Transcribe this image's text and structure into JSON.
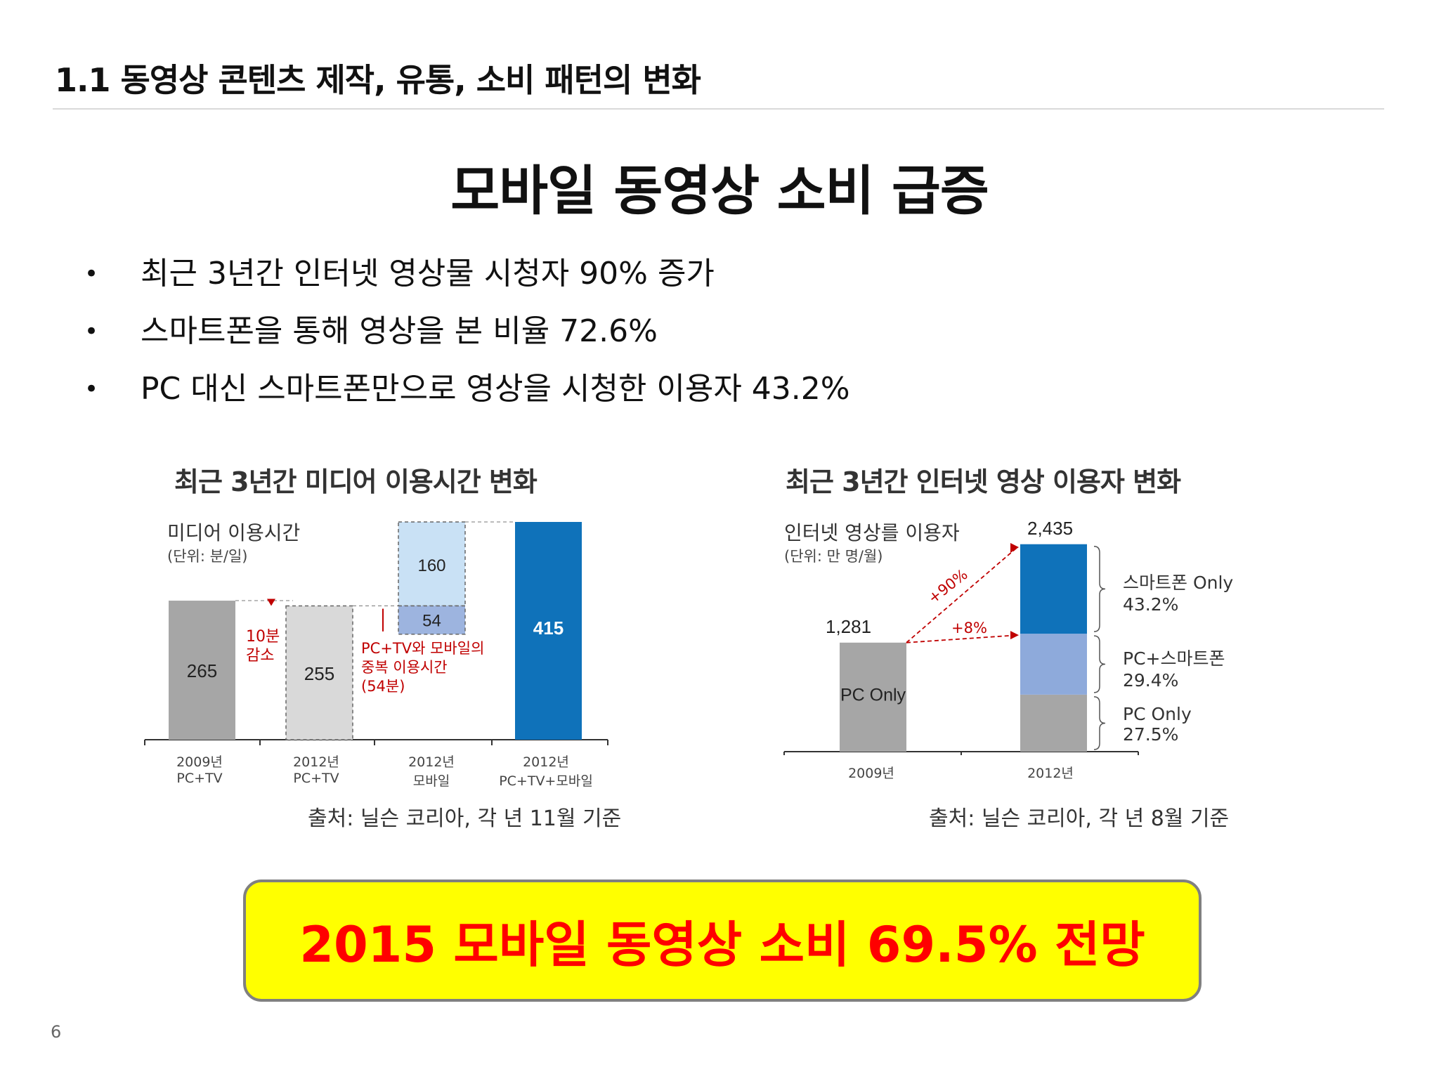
{
  "header": {
    "section_title": "1.1 동영상 콘텐츠 제작, 유통, 소비 패턴의 변화"
  },
  "main_title": "모바일 동영상 소비 급증",
  "bullets": [
    "최근 3년간 인터넷 영상물 시청자 90% 증가",
    "스마트폰을 통해 영상을 본 비율 72.6%",
    "PC 대신 스마트폰만으로 영상을 시청한 이용자 43.2%"
  ],
  "chart_data": [
    {
      "type": "bar",
      "title": "최근 3년간 미디어 이용시간 변화",
      "ylabel": "미디어 이용시간",
      "unit": "(단위: 분/일)",
      "categories": [
        {
          "line1": "2009년",
          "line2": "PC+TV"
        },
        {
          "line1": "2012년",
          "line2": "PC+TV"
        },
        {
          "line1": "2012년",
          "line2": "모바일"
        },
        {
          "line1": "2012년",
          "line2": "PC+TV+모바일"
        }
      ],
      "values": [
        265,
        255,
        214,
        415
      ],
      "mobile_segments": [
        {
          "label": "54",
          "value": 54
        },
        {
          "label": "160",
          "value": 160
        }
      ],
      "bar_labels": [
        "265",
        "255",
        "",
        "415"
      ],
      "annotations": {
        "decrease": {
          "line1": "10분",
          "line2": "감소"
        },
        "overlap": {
          "line1": "PC+TV와 모바일의",
          "line2": "중복 이용시간",
          "line3": "(54분)"
        }
      },
      "ylim": [
        0,
        415
      ],
      "colors": {
        "gray": "#a6a6a6",
        "light_gray": "#d9d9d9",
        "light_blue": "#c9e1f5",
        "mid_blue": "#9db4df",
        "blue": "#0f72ba",
        "red": "#c00000"
      },
      "source": "출처: 닐슨 코리아, 각 년 11월 기준"
    },
    {
      "type": "bar",
      "title": "최근 3년간 인터넷 영상 이용자 변화",
      "ylabel": "인터넷 영상를 이용자",
      "unit": "(단위: 만 명/월)",
      "categories": [
        "2009년",
        "2012년"
      ],
      "values": [
        1281,
        2435
      ],
      "value_labels": [
        "1,281",
        "2,435"
      ],
      "bar1_label": "PC Only",
      "stack_2012": [
        {
          "name": "PC Only",
          "share_label": "27.5%",
          "share": 27.5
        },
        {
          "name": "PC+스마트폰",
          "share_label": "29.4%",
          "share": 29.4
        },
        {
          "name": "스마트폰 Only",
          "share_label": "43.2%",
          "share": 43.2
        }
      ],
      "growth": {
        "total": "+90%",
        "pc": "+8%"
      },
      "ylim": [
        0,
        2435
      ],
      "colors": {
        "gray": "#a6a6a6",
        "mid_blue": "#8eaadb",
        "blue": "#0f72ba",
        "red": "#c00000"
      },
      "source": "출처: 닐슨 코리아, 각 년 8월 기준"
    }
  ],
  "callout": "2015 모바일 동영상 소비 69.5% 전망",
  "page_number": "6"
}
